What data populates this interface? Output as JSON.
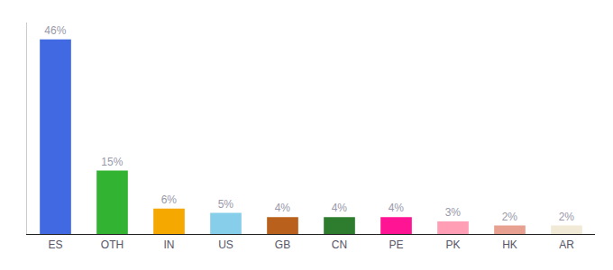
{
  "chart_data": {
    "type": "bar",
    "categories": [
      "ES",
      "OTH",
      "IN",
      "US",
      "GB",
      "CN",
      "PE",
      "PK",
      "HK",
      "AR"
    ],
    "values": [
      46,
      15,
      6,
      5,
      4,
      4,
      4,
      3,
      2,
      2
    ],
    "value_labels": [
      "46%",
      "15%",
      "6%",
      "5%",
      "4%",
      "4%",
      "4%",
      "3%",
      "2%",
      "2%"
    ],
    "colors": [
      "#4169e1",
      "#32b432",
      "#f5a800",
      "#87ceeb",
      "#b8601c",
      "#2e7d2e",
      "#ff1493",
      "#ff9eb5",
      "#e8a090",
      "#f0ead6"
    ],
    "ylim": [
      0,
      50
    ],
    "data_labels": true,
    "tick_labels": "x",
    "grid": false
  }
}
